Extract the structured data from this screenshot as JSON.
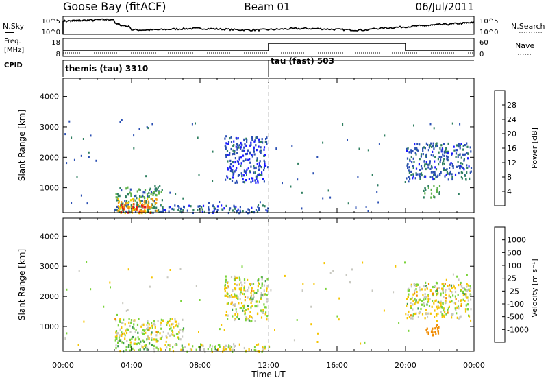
{
  "header": {
    "station": "Goose Bay (fitACF)",
    "beam": "Beam 01",
    "date": "06/Jul/2011"
  },
  "noise_panel": {
    "left_label": "N.Sky",
    "right_label": "N.Search",
    "left_ticks": [
      "10^5",
      "10^0"
    ],
    "right_ticks": [
      "10^5",
      "10^0"
    ]
  },
  "freq_panel": {
    "left_label_1": "Freq.",
    "left_label_2": "[MHz]",
    "right_label": "Nave",
    "left_ticks": [
      "18",
      "8"
    ],
    "right_ticks": [
      "60",
      "0"
    ]
  },
  "cpid_panel": {
    "label": "CPID",
    "segments": [
      {
        "name": "themis (tau) 3310",
        "start": 0
      },
      {
        "name": "tau (fast) 503",
        "start": 12
      }
    ]
  },
  "axes": {
    "ylabel": "Slant Range [km]",
    "xlabel": "Time UT",
    "yticks": [
      "1000",
      "2000",
      "3000",
      "4000"
    ],
    "xticks": [
      "00:00",
      "04:00",
      "08:00",
      "12:00",
      "16:00",
      "20:00",
      "00:00"
    ]
  },
  "power_scale": {
    "label": "Power [dB]",
    "ticks": [
      "4",
      "8",
      "12",
      "16",
      "20",
      "24",
      "28"
    ],
    "colors": [
      "#1a1aff",
      "#2a4fb3",
      "#2f7f60",
      "#5db14a",
      "#f2d400",
      "#f39c12",
      "#f07318",
      "#e31a1c"
    ]
  },
  "velocity_scale": {
    "label": "Velocity [m s⁻¹]",
    "ticks": [
      "1000",
      "500",
      "100",
      "25",
      "-25",
      "-100",
      "-500",
      "-1000"
    ],
    "colors": [
      "#1a2eb0",
      "#2f6fb6",
      "#3f9a4f",
      "#7ad33a",
      "#c8c8c0",
      "#f5c400",
      "#f08a00",
      "#f24d0a",
      "#e60000"
    ]
  },
  "chart_data": [
    {
      "type": "heatmap",
      "title": "Power",
      "xlabel": "Time UT",
      "ylabel": "Slant Range [km]",
      "xlim": [
        0,
        24
      ],
      "ylim": [
        180,
        4600
      ],
      "colorbar": {
        "label": "Power [dB]",
        "range": [
          0,
          32
        ]
      },
      "regions": [
        {
          "t0": 3.0,
          "t1": 5.8,
          "r0": 200,
          "r1": 1100,
          "value": 10
        },
        {
          "t0": 3.1,
          "t1": 5.5,
          "r0": 200,
          "r1": 700,
          "value": 20
        },
        {
          "t0": 3.3,
          "t1": 5.2,
          "r0": 200,
          "r1": 500,
          "value": 27
        },
        {
          "t0": 5.5,
          "t1": 12.0,
          "r0": 200,
          "r1": 450,
          "value": 6
        },
        {
          "t0": 9.4,
          "t1": 11.9,
          "r0": 1200,
          "r1": 2700,
          "value": 5
        },
        {
          "t0": 20.0,
          "t1": 23.8,
          "r0": 1300,
          "r1": 2500,
          "value": 7
        },
        {
          "t0": 21.0,
          "t1": 22.0,
          "r0": 700,
          "r1": 1100,
          "value": 12
        }
      ]
    },
    {
      "type": "heatmap",
      "title": "Velocity",
      "xlabel": "Time UT",
      "ylabel": "Slant Range [km]",
      "xlim": [
        0,
        24
      ],
      "ylim": [
        180,
        4600
      ],
      "colorbar": {
        "label": "Velocity [m s⁻¹]",
        "range": [
          -1000,
          1000
        ]
      },
      "regions": [
        {
          "t0": 3.0,
          "t1": 7.0,
          "r0": 600,
          "r1": 1300,
          "value": 0
        },
        {
          "t0": 3.0,
          "t1": 5.5,
          "r0": 200,
          "r1": 600,
          "value": 60
        },
        {
          "t0": 5.5,
          "t1": 12.0,
          "r0": 200,
          "r1": 450,
          "value": 10
        },
        {
          "t0": 9.4,
          "t1": 11.9,
          "r0": 1200,
          "r1": 2700,
          "value": 0
        },
        {
          "t0": 20.0,
          "t1": 23.8,
          "r0": 1300,
          "r1": 2500,
          "value": 0
        },
        {
          "t0": 21.0,
          "t1": 22.0,
          "r0": 700,
          "r1": 1100,
          "value": -400
        }
      ]
    }
  ]
}
